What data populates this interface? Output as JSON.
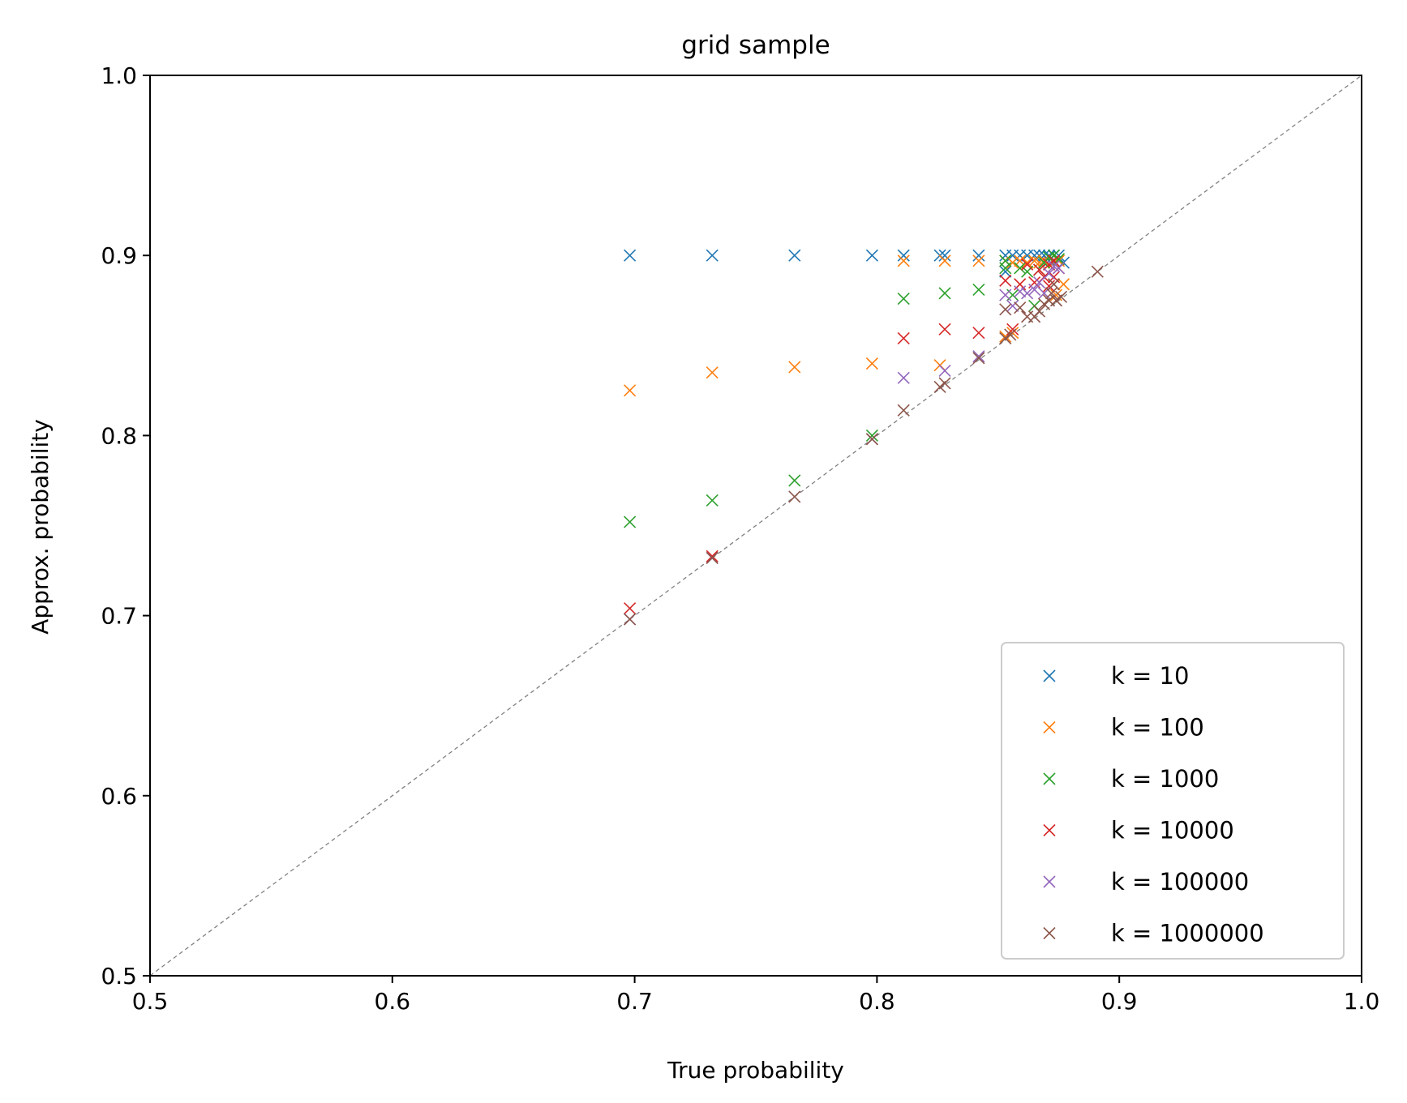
{
  "chart_data": {
    "type": "scatter",
    "title": "grid sample",
    "xlabel": "True probability",
    "ylabel": "Approx. probability",
    "xlim": [
      0.5,
      1.0
    ],
    "ylim": [
      0.5,
      1.0
    ],
    "xticks": [
      0.5,
      0.6,
      0.7,
      0.8,
      0.9,
      1.0
    ],
    "yticks": [
      0.5,
      0.6,
      0.7,
      0.8,
      0.9,
      1.0
    ],
    "xtick_labels": [
      "0.5",
      "0.6",
      "0.7",
      "0.8",
      "0.9",
      "1.0"
    ],
    "ytick_labels": [
      "0.5",
      "0.6",
      "0.7",
      "0.8",
      "0.9",
      "1.0"
    ],
    "grid": false,
    "legend_position": "bottom-right",
    "marker": "x",
    "reference_line": {
      "type": "diagonal",
      "style": "dashed",
      "color": "#808080"
    },
    "series": [
      {
        "name": "k = 10",
        "color": "#1f77b4",
        "points": [
          [
            0.698,
            0.9
          ],
          [
            0.732,
            0.9
          ],
          [
            0.766,
            0.9
          ],
          [
            0.798,
            0.9
          ],
          [
            0.811,
            0.9
          ],
          [
            0.826,
            0.9
          ],
          [
            0.828,
            0.9
          ],
          [
            0.842,
            0.9
          ],
          [
            0.853,
            0.9
          ],
          [
            0.856,
            0.9
          ],
          [
            0.859,
            0.9
          ],
          [
            0.862,
            0.9
          ],
          [
            0.865,
            0.9
          ],
          [
            0.867,
            0.9
          ],
          [
            0.869,
            0.9
          ],
          [
            0.871,
            0.9
          ],
          [
            0.873,
            0.9
          ],
          [
            0.875,
            0.9
          ],
          [
            0.853,
            0.891
          ],
          [
            0.871,
            0.897
          ],
          [
            0.877,
            0.896
          ]
        ]
      },
      {
        "name": "k = 100",
        "color": "#ff7f0e",
        "points": [
          [
            0.698,
            0.825
          ],
          [
            0.732,
            0.835
          ],
          [
            0.766,
            0.838
          ],
          [
            0.798,
            0.84
          ],
          [
            0.826,
            0.839
          ],
          [
            0.811,
            0.897
          ],
          [
            0.828,
            0.897
          ],
          [
            0.842,
            0.897
          ],
          [
            0.853,
            0.897
          ],
          [
            0.856,
            0.896
          ],
          [
            0.859,
            0.897
          ],
          [
            0.862,
            0.896
          ],
          [
            0.865,
            0.897
          ],
          [
            0.867,
            0.896
          ],
          [
            0.869,
            0.897
          ],
          [
            0.871,
            0.895
          ],
          [
            0.873,
            0.896
          ],
          [
            0.875,
            0.897
          ],
          [
            0.853,
            0.855
          ],
          [
            0.856,
            0.857
          ],
          [
            0.877,
            0.884
          ],
          [
            0.874,
            0.878
          ]
        ]
      },
      {
        "name": "k = 1000",
        "color": "#2ca02c",
        "points": [
          [
            0.698,
            0.752
          ],
          [
            0.732,
            0.764
          ],
          [
            0.766,
            0.775
          ],
          [
            0.798,
            0.8
          ],
          [
            0.811,
            0.876
          ],
          [
            0.828,
            0.879
          ],
          [
            0.842,
            0.881
          ],
          [
            0.853,
            0.893
          ],
          [
            0.856,
            0.878
          ],
          [
            0.859,
            0.893
          ],
          [
            0.862,
            0.891
          ],
          [
            0.865,
            0.872
          ],
          [
            0.867,
            0.892
          ],
          [
            0.869,
            0.896
          ],
          [
            0.871,
            0.899
          ],
          [
            0.873,
            0.9
          ],
          [
            0.875,
            0.898
          ],
          [
            0.853,
            0.897
          ]
        ]
      },
      {
        "name": "k = 10000",
        "color": "#d62728",
        "points": [
          [
            0.698,
            0.704
          ],
          [
            0.732,
            0.733
          ],
          [
            0.811,
            0.854
          ],
          [
            0.828,
            0.859
          ],
          [
            0.842,
            0.857
          ],
          [
            0.853,
            0.886
          ],
          [
            0.856,
            0.859
          ],
          [
            0.859,
            0.884
          ],
          [
            0.862,
            0.895
          ],
          [
            0.865,
            0.885
          ],
          [
            0.867,
            0.892
          ],
          [
            0.869,
            0.888
          ],
          [
            0.871,
            0.895
          ],
          [
            0.873,
            0.897
          ],
          [
            0.875,
            0.893
          ],
          [
            0.873,
            0.888
          ],
          [
            0.871,
            0.883
          ]
        ]
      },
      {
        "name": "k = 100000",
        "color": "#9467bd",
        "points": [
          [
            0.698,
            0.698
          ],
          [
            0.732,
            0.732
          ],
          [
            0.798,
            0.798
          ],
          [
            0.811,
            0.832
          ],
          [
            0.828,
            0.836
          ],
          [
            0.842,
            0.844
          ],
          [
            0.853,
            0.878
          ],
          [
            0.856,
            0.872
          ],
          [
            0.859,
            0.88
          ],
          [
            0.862,
            0.879
          ],
          [
            0.865,
            0.881
          ],
          [
            0.867,
            0.885
          ],
          [
            0.869,
            0.879
          ],
          [
            0.871,
            0.89
          ],
          [
            0.873,
            0.894
          ],
          [
            0.875,
            0.893
          ]
        ]
      },
      {
        "name": "k = 1000000",
        "color": "#8c564b",
        "points": [
          [
            0.698,
            0.698
          ],
          [
            0.732,
            0.732
          ],
          [
            0.766,
            0.766
          ],
          [
            0.798,
            0.798
          ],
          [
            0.811,
            0.814
          ],
          [
            0.826,
            0.827
          ],
          [
            0.828,
            0.829
          ],
          [
            0.842,
            0.843
          ],
          [
            0.853,
            0.854
          ],
          [
            0.855,
            0.856
          ],
          [
            0.853,
            0.87
          ],
          [
            0.859,
            0.871
          ],
          [
            0.862,
            0.866
          ],
          [
            0.865,
            0.866
          ],
          [
            0.867,
            0.869
          ],
          [
            0.869,
            0.873
          ],
          [
            0.871,
            0.875
          ],
          [
            0.872,
            0.879
          ],
          [
            0.873,
            0.884
          ],
          [
            0.874,
            0.875
          ],
          [
            0.876,
            0.877
          ],
          [
            0.891,
            0.891
          ]
        ]
      }
    ]
  }
}
